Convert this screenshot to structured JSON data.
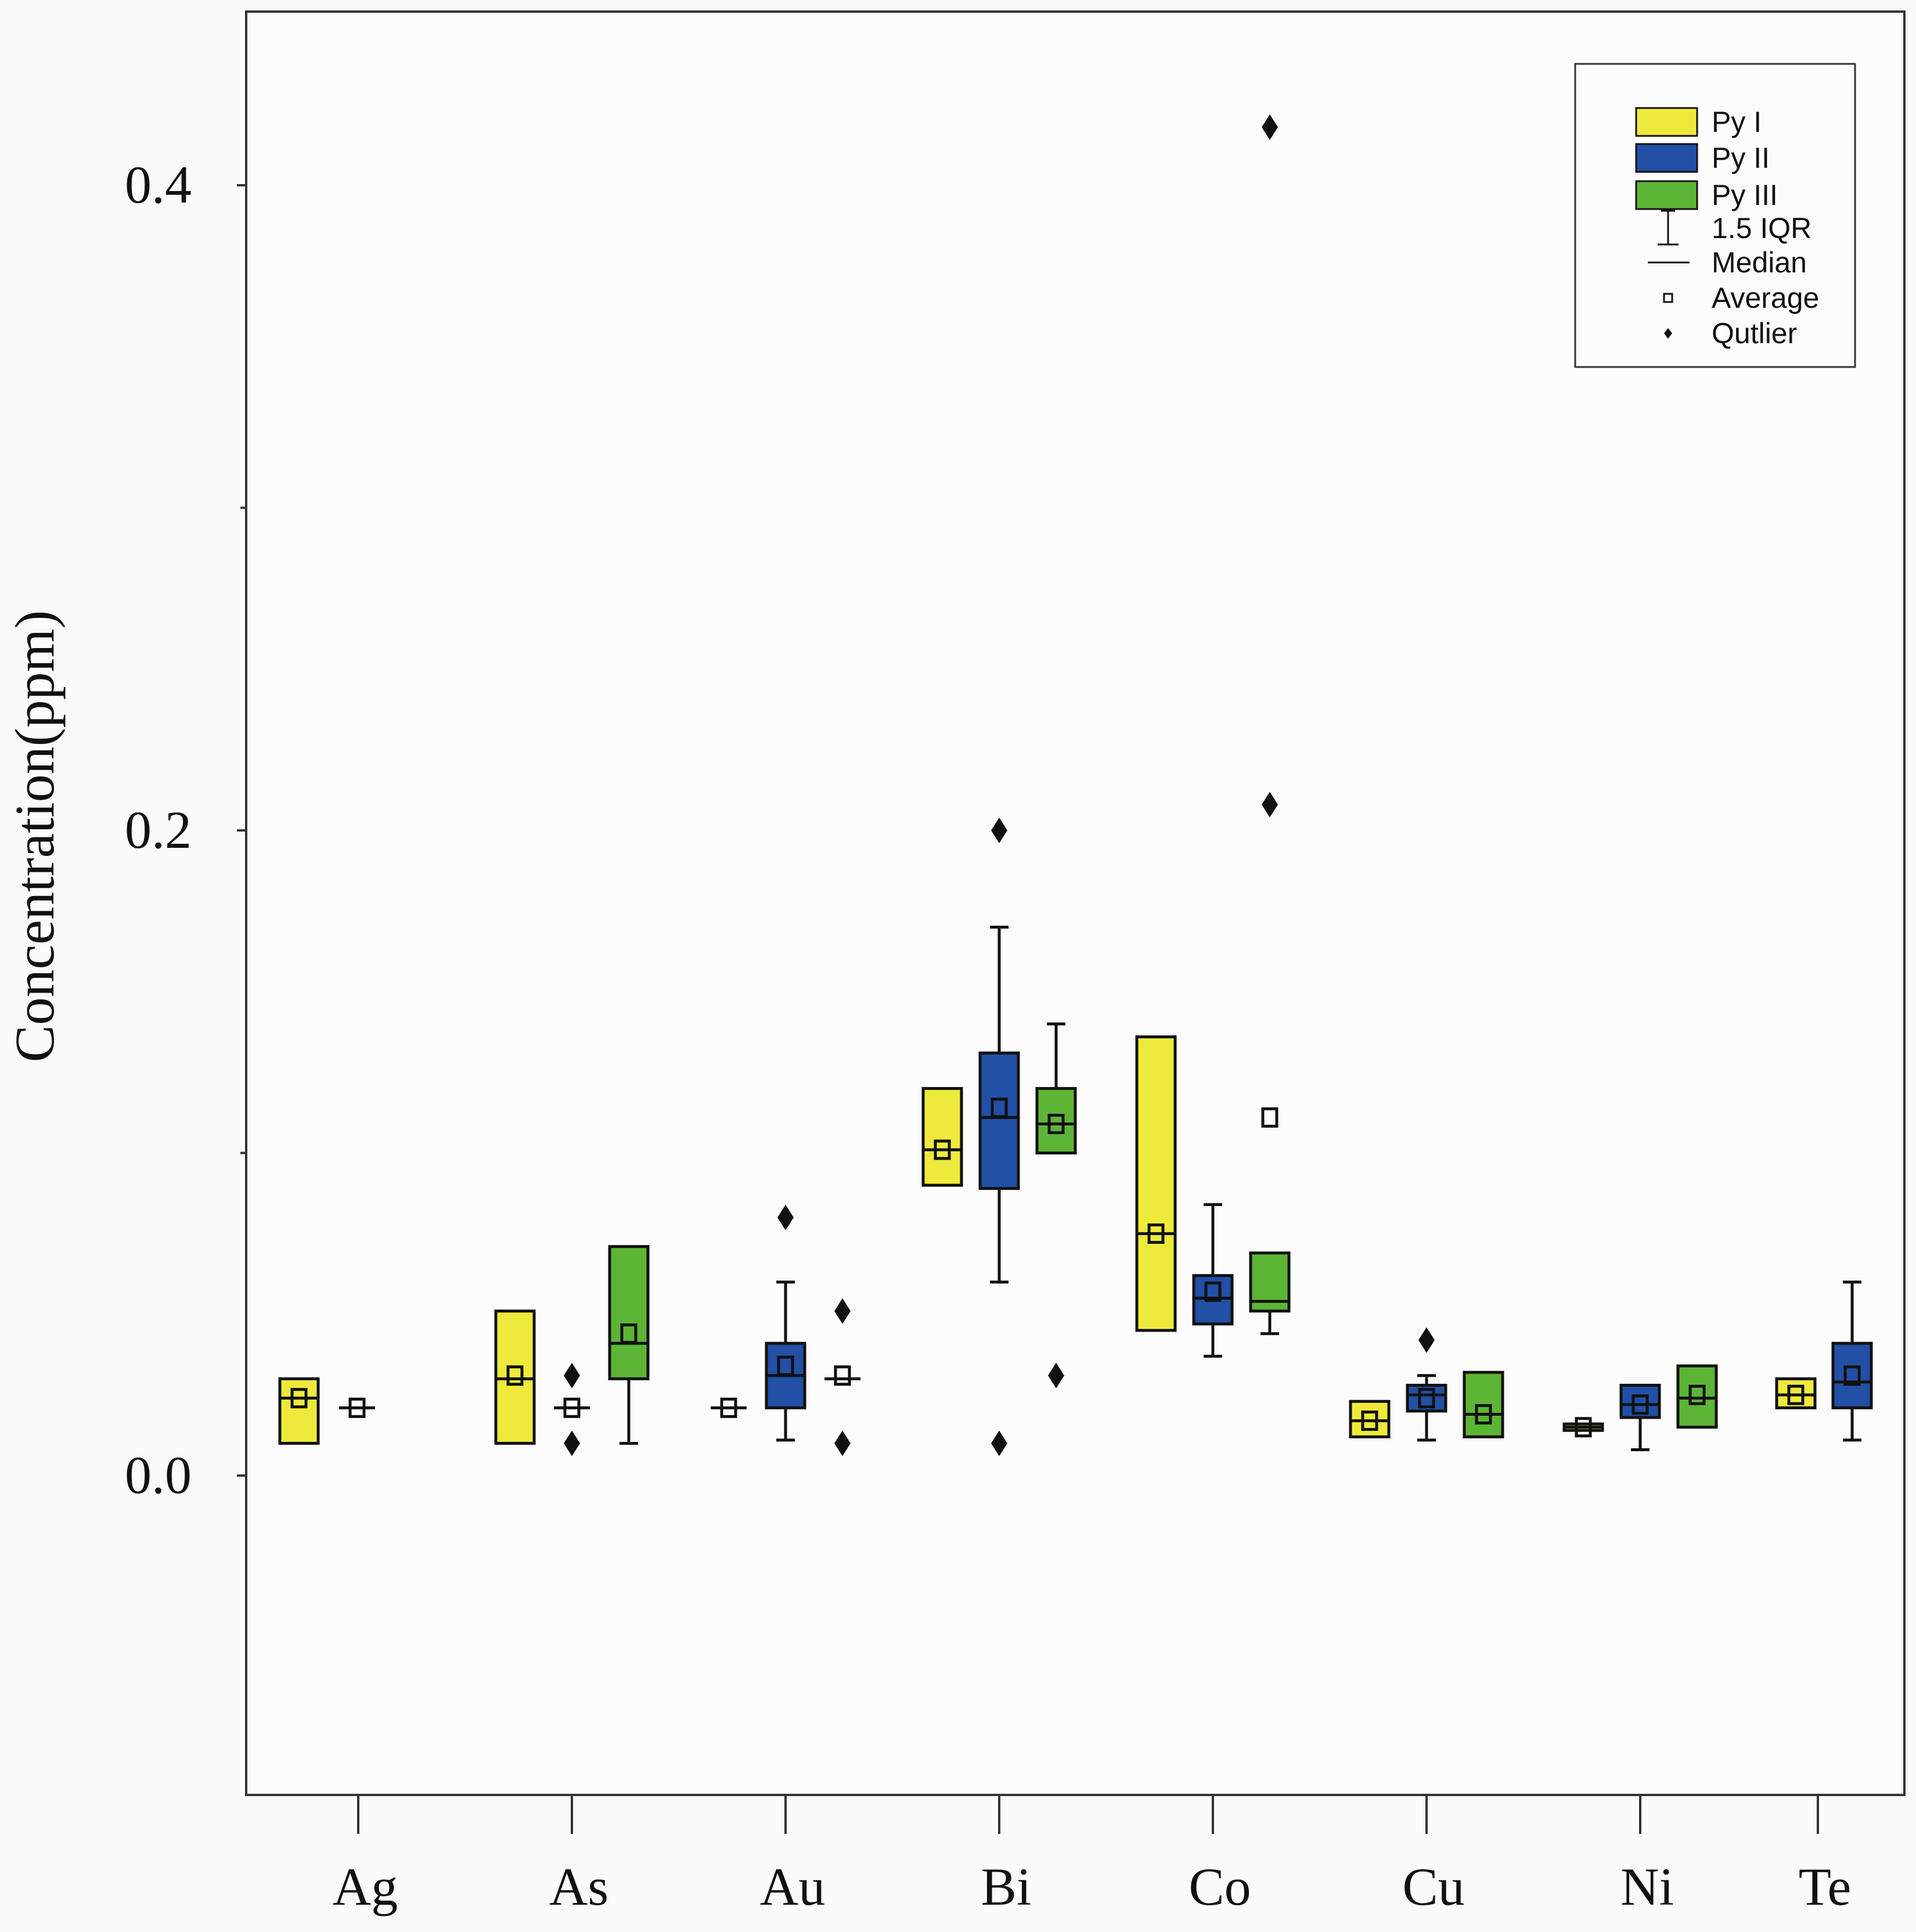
{
  "chart_data": {
    "type": "box",
    "title": "",
    "ylabel": "Concentration(ppm)",
    "xlabel": "",
    "ylim": [
      -0.1,
      0.45
    ],
    "yticks": [
      0.0,
      0.2,
      0.4
    ],
    "ytick_labels": [
      "0.0",
      "0.2",
      "0.4"
    ],
    "categories": [
      "Ag",
      "As",
      "Au",
      "Bi",
      "Co",
      "Cu",
      "Ni",
      "Te"
    ],
    "colors": {
      "Py I": "#eeea3c",
      "Py II": "#2150a6",
      "Py III": "#5db536"
    },
    "legend": {
      "position": "top-right",
      "entries": [
        {
          "label": "Py I",
          "kind": "box",
          "series": "Py I"
        },
        {
          "label": "Py II",
          "kind": "box",
          "series": "Py II"
        },
        {
          "label": "Py III",
          "kind": "box",
          "series": "Py III"
        },
        {
          "label": "1.5 IQR",
          "kind": "whisker"
        },
        {
          "label": "Median",
          "kind": "median"
        },
        {
          "label": "Average",
          "kind": "average"
        },
        {
          "label": "Qutlier",
          "kind": "outlier"
        }
      ]
    },
    "boxes": [
      {
        "category": "Ag",
        "series": "Py I",
        "q1": 0.01,
        "median": 0.024,
        "q3": 0.03,
        "mean": 0.024,
        "wlow": null,
        "whigh": null,
        "outliers": []
      },
      {
        "category": "Ag",
        "series": "Py II",
        "q1": 0.021,
        "median": 0.021,
        "q3": 0.021,
        "mean": 0.021,
        "wlow": null,
        "whigh": null,
        "outliers": []
      },
      {
        "category": "As",
        "series": "Py I",
        "q1": 0.01,
        "median": 0.03,
        "q3": 0.051,
        "mean": 0.031,
        "wlow": null,
        "whigh": null,
        "outliers": []
      },
      {
        "category": "As",
        "series": "Py II",
        "q1": 0.021,
        "median": 0.021,
        "q3": 0.021,
        "mean": 0.021,
        "wlow": null,
        "whigh": null,
        "outliers": [
          0.031,
          0.01
        ]
      },
      {
        "category": "As",
        "series": "Py III",
        "q1": 0.03,
        "median": 0.041,
        "q3": 0.071,
        "mean": 0.044,
        "wlow": 0.01,
        "whigh": null,
        "outliers": []
      },
      {
        "category": "Au",
        "series": "Py I",
        "q1": 0.021,
        "median": 0.021,
        "q3": 0.021,
        "mean": 0.021,
        "wlow": null,
        "whigh": null,
        "outliers": []
      },
      {
        "category": "Au",
        "series": "Py II",
        "q1": 0.021,
        "median": 0.031,
        "q3": 0.041,
        "mean": 0.034,
        "wlow": 0.011,
        "whigh": 0.06,
        "outliers": [
          0.08
        ]
      },
      {
        "category": "Au",
        "series": "Py III",
        "q1": 0.03,
        "median": 0.03,
        "q3": 0.03,
        "mean": 0.031,
        "wlow": null,
        "whigh": null,
        "outliers": [
          0.051,
          0.01
        ]
      },
      {
        "category": "Bi",
        "series": "Py I",
        "q1": 0.09,
        "median": 0.101,
        "q3": 0.12,
        "mean": 0.101,
        "wlow": null,
        "whigh": null,
        "outliers": []
      },
      {
        "category": "Bi",
        "series": "Py II",
        "q1": 0.089,
        "median": 0.111,
        "q3": 0.131,
        "mean": 0.114,
        "wlow": 0.06,
        "whigh": 0.17,
        "outliers": [
          0.2,
          0.01
        ]
      },
      {
        "category": "Bi",
        "series": "Py III",
        "q1": 0.1,
        "median": 0.109,
        "q3": 0.12,
        "mean": 0.109,
        "wlow": null,
        "whigh": 0.14,
        "outliers": [
          0.031
        ]
      },
      {
        "category": "Co",
        "series": "Py I",
        "q1": 0.045,
        "median": 0.075,
        "q3": 0.136,
        "mean": 0.075,
        "wlow": null,
        "whigh": null,
        "outliers": []
      },
      {
        "category": "Co",
        "series": "Py II",
        "q1": 0.047,
        "median": 0.055,
        "q3": 0.062,
        "mean": 0.057,
        "wlow": 0.037,
        "whigh": 0.084,
        "outliers": []
      },
      {
        "category": "Co",
        "series": "Py III",
        "q1": 0.051,
        "median": 0.054,
        "q3": 0.069,
        "mean": 0.111,
        "wlow": 0.044,
        "whigh": null,
        "outliers": [
          0.418,
          0.208
        ]
      },
      {
        "category": "Cu",
        "series": "Py I",
        "q1": 0.012,
        "median": 0.017,
        "q3": 0.023,
        "mean": 0.017,
        "wlow": null,
        "whigh": null,
        "outliers": []
      },
      {
        "category": "Cu",
        "series": "Py II",
        "q1": 0.02,
        "median": 0.025,
        "q3": 0.028,
        "mean": 0.024,
        "wlow": 0.011,
        "whigh": 0.031,
        "outliers": [
          0.042
        ]
      },
      {
        "category": "Cu",
        "series": "Py III",
        "q1": 0.012,
        "median": 0.019,
        "q3": 0.032,
        "mean": 0.019,
        "wlow": null,
        "whigh": null,
        "outliers": []
      },
      {
        "category": "Ni",
        "series": "Py I",
        "q1": 0.014,
        "median": 0.015,
        "q3": 0.016,
        "mean": 0.015,
        "wlow": null,
        "whigh": null,
        "outliers": []
      },
      {
        "category": "Ni",
        "series": "Py II",
        "q1": 0.018,
        "median": 0.022,
        "q3": 0.028,
        "mean": 0.022,
        "wlow": 0.008,
        "whigh": null,
        "outliers": []
      },
      {
        "category": "Ni",
        "series": "Py III",
        "q1": 0.015,
        "median": 0.024,
        "q3": 0.034,
        "mean": 0.025,
        "wlow": null,
        "whigh": null,
        "outliers": []
      },
      {
        "category": "Te",
        "series": "Py I",
        "q1": 0.021,
        "median": 0.025,
        "q3": 0.03,
        "mean": 0.025,
        "wlow": null,
        "whigh": null,
        "outliers": []
      },
      {
        "category": "Te",
        "series": "Py II",
        "q1": 0.021,
        "median": 0.029,
        "q3": 0.041,
        "mean": 0.031,
        "wlow": 0.011,
        "whigh": 0.06,
        "outliers": []
      }
    ]
  }
}
